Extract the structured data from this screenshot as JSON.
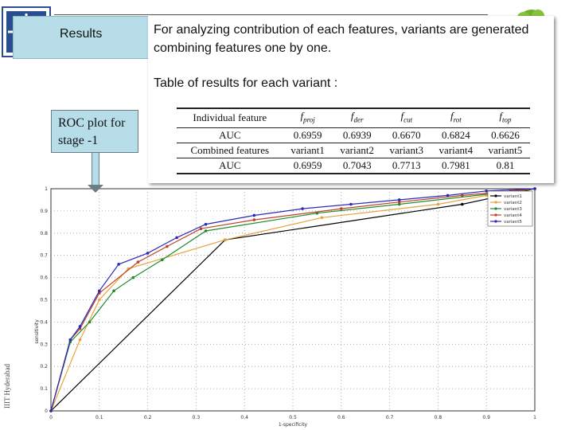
{
  "slide": {
    "title": "Results",
    "description": "For analyzing contribution of each features, variants are generated combining features one by one.",
    "table_title": "Table of results for each variant :",
    "callout": "ROC plot for stage -1",
    "side_credit": "IIIT Hyderabad"
  },
  "results_table": {
    "rows": [
      {
        "label": "Individual feature",
        "cells": [
          {
            "f": "f",
            "sub": "proj"
          },
          {
            "f": "f",
            "sub": "der"
          },
          {
            "f": "f",
            "sub": "cut"
          },
          {
            "f": "f",
            "sub": "rot"
          },
          {
            "f": "f",
            "sub": "top"
          }
        ]
      },
      {
        "label": "AUC",
        "cells": [
          "0.6959",
          "0.6939",
          "0.6670",
          "0.6824",
          "0.6626"
        ]
      },
      {
        "label": "Combined features",
        "cells": [
          "variant1",
          "variant2",
          "variant3",
          "variant4",
          "variant5"
        ]
      },
      {
        "label": "AUC",
        "cells": [
          "0.6959",
          "0.7043",
          "0.7713",
          "0.7981",
          "0.81"
        ]
      }
    ]
  },
  "colors": {
    "title_bg": "#b7dde8",
    "callout_bg": "#b7dde8"
  },
  "chart_data": {
    "type": "line",
    "xlabel": "1-specificity",
    "ylabel": "sensitivity",
    "xlim": [
      0,
      1
    ],
    "ylim": [
      0,
      1
    ],
    "x_ticks": [
      "0",
      "0.1",
      "0.2",
      "0.3",
      "0.4",
      "0.5",
      "0.6",
      "0.7",
      "0.8",
      "0.9",
      "1"
    ],
    "y_ticks": [
      "0",
      "0.1",
      "0.2",
      "0.3",
      "0.4",
      "0.5",
      "0.6",
      "0.7",
      "0.8",
      "0.9",
      "1"
    ],
    "grid": true,
    "legend_position": "top-right",
    "series": [
      {
        "name": "variant1",
        "color": "#000000",
        "points": [
          [
            0,
            0
          ],
          [
            0.36,
            0.77
          ],
          [
            0.85,
            0.93
          ],
          [
            1,
            1
          ]
        ]
      },
      {
        "name": "variant2",
        "color": "#e8a23a",
        "points": [
          [
            0,
            0
          ],
          [
            0.06,
            0.32
          ],
          [
            0.1,
            0.5
          ],
          [
            0.16,
            0.64
          ],
          [
            0.36,
            0.77
          ],
          [
            0.56,
            0.87
          ],
          [
            0.8,
            0.93
          ],
          [
            0.9,
            0.97
          ],
          [
            1,
            1
          ]
        ]
      },
      {
        "name": "variant3",
        "color": "#1f8a2b",
        "points": [
          [
            0,
            0
          ],
          [
            0.04,
            0.31
          ],
          [
            0.08,
            0.4
          ],
          [
            0.13,
            0.54
          ],
          [
            0.17,
            0.6
          ],
          [
            0.23,
            0.68
          ],
          [
            0.32,
            0.81
          ],
          [
            0.55,
            0.89
          ],
          [
            0.72,
            0.93
          ],
          [
            1,
            1
          ]
        ]
      },
      {
        "name": "variant4",
        "color": "#c0402a",
        "points": [
          [
            0,
            0
          ],
          [
            0.04,
            0.32
          ],
          [
            0.06,
            0.37
          ],
          [
            0.1,
            0.53
          ],
          [
            0.18,
            0.67
          ],
          [
            0.24,
            0.74
          ],
          [
            0.31,
            0.82
          ],
          [
            0.42,
            0.86
          ],
          [
            0.6,
            0.91
          ],
          [
            0.72,
            0.94
          ],
          [
            0.85,
            0.97
          ],
          [
            0.95,
            0.99
          ],
          [
            1,
            1
          ]
        ]
      },
      {
        "name": "variant5",
        "color": "#2a2ab8",
        "points": [
          [
            0,
            0
          ],
          [
            0.04,
            0.32
          ],
          [
            0.06,
            0.38
          ],
          [
            0.1,
            0.54
          ],
          [
            0.14,
            0.66
          ],
          [
            0.2,
            0.71
          ],
          [
            0.26,
            0.78
          ],
          [
            0.32,
            0.84
          ],
          [
            0.42,
            0.88
          ],
          [
            0.52,
            0.91
          ],
          [
            0.62,
            0.93
          ],
          [
            0.72,
            0.95
          ],
          [
            0.82,
            0.97
          ],
          [
            0.9,
            0.99
          ],
          [
            1,
            1
          ]
        ]
      }
    ]
  }
}
